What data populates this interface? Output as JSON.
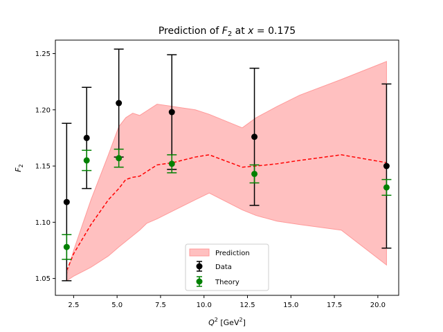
{
  "chart_data": {
    "type": "line",
    "title_prefix": "Prediction of ",
    "title_var": "F",
    "title_sub": "2",
    "title_suffix": " at ",
    "title_x_var": "x",
    "title_x_value": " = 0.175",
    "xlabel_var": "Q",
    "xlabel_sup": "2",
    "xlabel_units": " [GeV",
    "xlabel_units_sup": "2",
    "xlabel_units_close": "]",
    "ylabel_var": "F",
    "ylabel_sub": "2",
    "xlim": [
      1.45,
      21.2
    ],
    "ylim": [
      1.035,
      1.262
    ],
    "xticks": [
      2.5,
      5.0,
      7.5,
      10.0,
      12.5,
      15.0,
      17.5,
      20.0
    ],
    "xtick_labels": [
      "2.5",
      "5.0",
      "7.5",
      "10.0",
      "12.5",
      "15.0",
      "17.5",
      "20.0"
    ],
    "yticks": [
      1.05,
      1.1,
      1.15,
      1.2,
      1.25
    ],
    "ytick_labels": [
      "1.05",
      "1.10",
      "1.15",
      "1.20",
      "1.25"
    ],
    "grid": false,
    "legend_placement": "lower-center",
    "series": [
      {
        "name": "Prediction",
        "kind": "band",
        "color": "#ff9999",
        "x": [
          2.1,
          2.5,
          3.5,
          4.5,
          5.1,
          5.5,
          5.9,
          6.3,
          6.7,
          7.3,
          8.2,
          9.5,
          10.3,
          12.2,
          13.0,
          14.2,
          15.5,
          17.9,
          20.5
        ],
        "upper": [
          1.053,
          1.075,
          1.12,
          1.16,
          1.185,
          1.193,
          1.197,
          1.195,
          1.199,
          1.205,
          1.203,
          1.2,
          1.196,
          1.184,
          1.193,
          1.203,
          1.213,
          1.227,
          1.243
        ],
        "lower": [
          1.048,
          1.052,
          1.06,
          1.07,
          1.078,
          1.083,
          1.088,
          1.093,
          1.099,
          1.103,
          1.11,
          1.12,
          1.126,
          1.111,
          1.106,
          1.101,
          1.098,
          1.093,
          1.062
        ]
      },
      {
        "name": "Prediction central",
        "kind": "dashed-line",
        "color": "#ff0000",
        "x": [
          2.1,
          2.5,
          3.5,
          4.5,
          5.1,
          5.5,
          5.9,
          6.3,
          6.7,
          7.3,
          8.2,
          9.5,
          10.3,
          12.2,
          13.0,
          14.2,
          15.5,
          17.9,
          20.5
        ],
        "y": [
          1.057,
          1.072,
          1.098,
          1.12,
          1.13,
          1.138,
          1.14,
          1.141,
          1.145,
          1.151,
          1.153,
          1.158,
          1.16,
          1.149,
          1.15,
          1.152,
          1.155,
          1.16,
          1.153
        ]
      },
      {
        "name": "Data",
        "kind": "errorbar",
        "color": "#000000",
        "x": [
          2.1,
          3.25,
          5.1,
          8.15,
          12.9,
          20.5
        ],
        "y": [
          1.118,
          1.175,
          1.206,
          1.198,
          1.176,
          1.15
        ],
        "err": [
          0.07,
          0.045,
          0.048,
          0.051,
          0.061,
          0.073
        ]
      },
      {
        "name": "Theory",
        "kind": "errorbar",
        "color": "#008000",
        "x": [
          2.1,
          3.25,
          5.1,
          8.15,
          12.9,
          20.5
        ],
        "y": [
          1.078,
          1.155,
          1.157,
          1.152,
          1.143,
          1.131
        ],
        "err": [
          0.011,
          0.009,
          0.008,
          0.008,
          0.008,
          0.007
        ]
      }
    ],
    "legend": [
      "Prediction",
      "Data",
      "Theory"
    ]
  }
}
